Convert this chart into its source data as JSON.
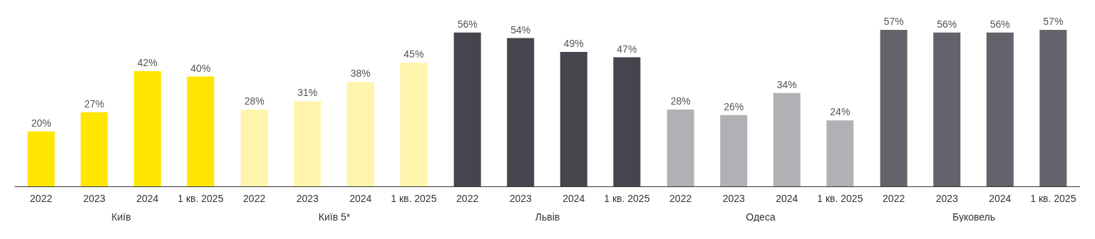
{
  "chart_data": [
    {
      "type": "bar",
      "xlabel": "Київ",
      "categories": [
        "2022",
        "2023",
        "2024",
        "1 кв. 2025"
      ],
      "values": [
        20,
        27,
        42,
        40
      ],
      "value_labels": [
        "20%",
        "27%",
        "42%",
        "40%"
      ],
      "colors": [
        "#ffe600",
        "#ffe600",
        "#ffe600",
        "#ffe600"
      ]
    },
    {
      "type": "bar",
      "xlabel": "Київ 5*",
      "categories": [
        "2022",
        "2023",
        "2024",
        "1 кв. 2025"
      ],
      "values": [
        28,
        31,
        38,
        45
      ],
      "value_labels": [
        "28%",
        "31%",
        "38%",
        "45%"
      ],
      "colors": [
        "#fff4ae",
        "#fff4ae",
        "#fff4ae",
        "#fff4ae"
      ]
    },
    {
      "type": "bar",
      "xlabel": "Львів",
      "categories": [
        "2022",
        "2023",
        "2024",
        "1 кв. 2025"
      ],
      "values": [
        56,
        54,
        49,
        47
      ],
      "value_labels": [
        "56%",
        "54%",
        "49%",
        "47%"
      ],
      "colors": [
        "#45454d",
        "#45454d",
        "#45454d",
        "#45454d"
      ]
    },
    {
      "type": "bar",
      "xlabel": "Одеса",
      "categories": [
        "2022",
        "2023",
        "2024",
        "1 кв. 2025"
      ],
      "values": [
        28,
        26,
        34,
        24
      ],
      "value_labels": [
        "28%",
        "26%",
        "34%",
        "24%"
      ],
      "colors": [
        "#b1b0b5",
        "#b1b0b5",
        "#b1b0b5",
        "#b1b0b5"
      ]
    },
    {
      "type": "bar",
      "xlabel": "Буковель",
      "categories": [
        "2022",
        "2023",
        "2024",
        "1 кв. 2025"
      ],
      "values": [
        57,
        56,
        56,
        57
      ],
      "value_labels": [
        "57%",
        "56%",
        "56%",
        "57%"
      ],
      "colors": [
        "#64636b",
        "#64636b",
        "#64636b",
        "#64636b"
      ]
    }
  ]
}
